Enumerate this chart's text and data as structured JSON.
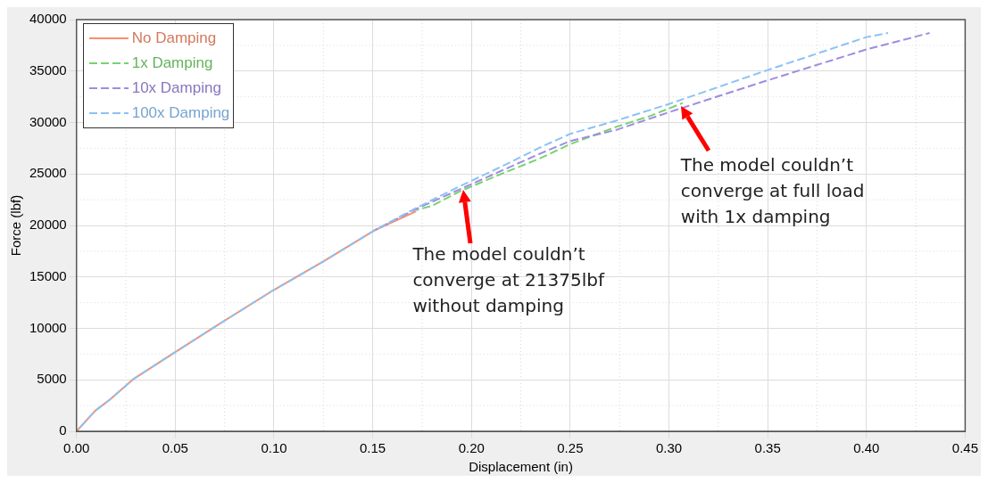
{
  "chart_data": {
    "type": "line",
    "xlabel": "Displacement (in)",
    "ylabel": "Force (lbf)",
    "xlim": [
      0,
      0.45
    ],
    "xticks": [
      {
        "value": 0,
        "label": "0.00"
      },
      {
        "value": 0.05,
        "label": "0.05"
      },
      {
        "value": 0.1,
        "label": "0.10"
      },
      {
        "value": 0.15,
        "label": "0.15"
      },
      {
        "value": 0.2,
        "label": "0.20"
      },
      {
        "value": 0.25,
        "label": "0.25"
      },
      {
        "value": 0.3,
        "label": "0.30"
      },
      {
        "value": 0.35,
        "label": "0.35"
      },
      {
        "value": 0.4,
        "label": "0.40"
      },
      {
        "value": 0.45,
        "label": "0.45"
      }
    ],
    "ylim": [
      0,
      40000
    ],
    "yticks": [
      0,
      5000,
      10000,
      15000,
      20000,
      25000,
      30000,
      35000,
      40000
    ],
    "grid": true,
    "legend": "top left",
    "marker": "none",
    "series": [
      {
        "name": "No Damping",
        "color": "#f98f6f",
        "line_style": "solid",
        "x": [
          0,
          0.0095,
          0.017,
          0.029,
          0.05,
          0.0696,
          0.0996,
          0.125,
          0.1506,
          0.172
        ],
        "values": [
          0,
          2000,
          3100,
          5100,
          7700,
          10100,
          13700,
          16500,
          19500,
          21375
        ]
      },
      {
        "name": "1x Damping",
        "color": "#77d36f",
        "line_style": "dashed",
        "x": [
          0.172,
          0.18,
          0.194,
          0.215,
          0.2345,
          0.25,
          0.2736,
          0.29,
          0.307
        ],
        "values": [
          21500,
          21900,
          23300,
          25000,
          26500,
          27900,
          29600,
          30600,
          31900
        ]
      },
      {
        "name": "10x Damping",
        "color": "#a08ce0",
        "line_style": "dashed",
        "x": [
          0.1506,
          0.172,
          0.194,
          0.215,
          0.235,
          0.25,
          0.2736,
          0.3,
          0.35,
          0.4,
          0.432
        ],
        "values": [
          19500,
          21600,
          23500,
          25300,
          27000,
          28200,
          29300,
          31000,
          34100,
          37100,
          38700
        ]
      },
      {
        "name": "100x Damping",
        "color": "#8cc2f5",
        "line_style": "dashed",
        "x": [
          0,
          0.0095,
          0.017,
          0.029,
          0.05,
          0.0696,
          0.0996,
          0.125,
          0.1506,
          0.172,
          0.194,
          0.215,
          0.235,
          0.25,
          0.2736,
          0.3,
          0.35,
          0.4,
          0.411
        ],
        "values": [
          0,
          2000,
          3100,
          5100,
          7700,
          10100,
          13700,
          16500,
          19500,
          21700,
          23800,
          25700,
          27600,
          28900,
          30200,
          31800,
          35100,
          38300,
          38700
        ]
      }
    ],
    "annotations": [
      {
        "text": "The model couldn’t\nconverge at 21375lbf\nwithout damping",
        "x": 0.196,
        "y": 23500
      },
      {
        "text": "The model couldn’t\nconverge at full load\nwith 1x damping",
        "x": 0.306,
        "y": 31600
      }
    ]
  }
}
